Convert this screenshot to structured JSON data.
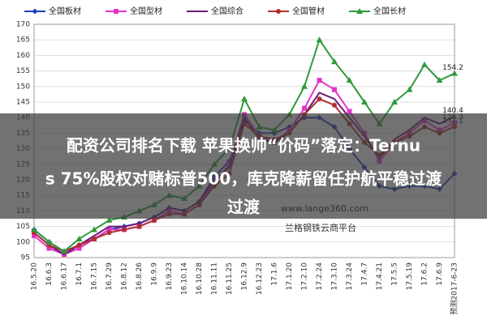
{
  "chart_data": {
    "type": "line",
    "categories": [
      "16.5.20",
      "16.6.3",
      "16.6.17",
      "16.7.1",
      "16.7.15",
      "16.7.29",
      "16.8.12",
      "16.8.26",
      "16.9.9",
      "16.9.23",
      "16.10.14",
      "16.10.28",
      "16.11.11",
      "16.11.25",
      "16.12.9",
      "16.12.23",
      "17.1.6",
      "17.1.20",
      "17.2.10",
      "17.2.24",
      "17.3.10",
      "17.3.24",
      "17.4.7",
      "17.4.21",
      "17.5.5",
      "17.5.19",
      "17.6.2",
      "17.6.9",
      "预测2017-6-23"
    ],
    "series": [
      {
        "name": "全国板材",
        "color": "#1f3fbf",
        "marker": "diamond",
        "values": [
          104,
          100,
          97,
          99,
          101,
          104,
          105,
          106,
          108,
          111,
          110,
          113,
          121,
          126,
          139,
          135,
          135,
          137,
          140,
          140,
          137,
          130,
          124,
          118,
          117,
          118,
          118,
          117,
          122
        ]
      },
      {
        "name": "全国型材",
        "color": "#e633c8",
        "marker": "square",
        "values": [
          102,
          98,
          96,
          98,
          101,
          104,
          104,
          105,
          107,
          110,
          109,
          112,
          119,
          125,
          141,
          134,
          132,
          136,
          143,
          152,
          149,
          142,
          135,
          126,
          132,
          135,
          139,
          136,
          138.3
        ]
      },
      {
        "name": "全国综合",
        "color": "#6a1b7a",
        "marker": "none",
        "values": [
          103,
          99,
          96,
          99,
          102,
          105,
          105,
          106,
          108,
          111,
          110,
          113,
          120,
          124,
          140,
          133,
          132,
          135,
          141,
          148,
          146,
          140,
          134,
          127,
          133,
          136,
          140,
          138,
          140.4
        ]
      },
      {
        "name": "全国管材",
        "color": "#b03030",
        "marker": "circle",
        "values": [
          103,
          99,
          97,
          99,
          101,
          103,
          104,
          105,
          107,
          109,
          109,
          112,
          118,
          122,
          138,
          134,
          133,
          135,
          141,
          146,
          144,
          138,
          132,
          128,
          132,
          134,
          137,
          135,
          137.1
        ]
      },
      {
        "name": "全国长材",
        "color": "#2e9a3a",
        "marker": "triangle",
        "values": [
          104,
          100,
          97,
          101,
          104,
          107,
          108,
          110,
          112,
          115,
          114,
          118,
          125,
          130,
          146,
          137,
          136,
          141,
          150,
          165,
          158,
          152,
          145,
          138,
          145,
          149,
          157,
          152,
          154.2
        ]
      }
    ],
    "ylim": [
      95,
      170
    ],
    "yticks": [
      95,
      100,
      105,
      110,
      115,
      120,
      125,
      130,
      135,
      140,
      145,
      150,
      155,
      160,
      165,
      170
    ],
    "grid": true,
    "legend": "top"
  },
  "overlay": {
    "headline": [
      "配资公司排名下载 苹果换帅“价码”落定：Ternu",
      "s 75%股权对赌标普500，库克降薪留任护航平稳过渡",
      "过渡"
    ],
    "watermark": [
      "www.lange360.com",
      "兰格钢铁云商平台"
    ]
  }
}
